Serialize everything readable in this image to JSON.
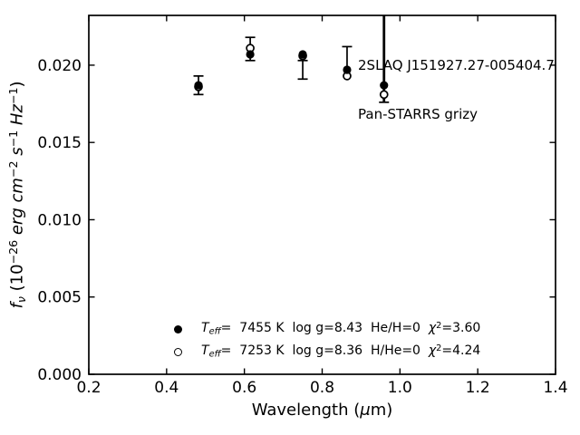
{
  "ui": {
    "annotation": {
      "line1": "2SLAQ J151927.27-005404.7",
      "line2": "Pan-STARRS grizy"
    },
    "labels": {
      "xlabel_segments": [
        {
          "t": "Wavelength (",
          "s": ""
        },
        {
          "t": "μ",
          "s": "i"
        },
        {
          "t": "m)",
          "s": ""
        }
      ],
      "ylabel_segments": [
        {
          "t": "f",
          "s": "i"
        },
        {
          "t": "ν",
          "s": "isub"
        },
        {
          "t": " (10",
          "s": ""
        },
        {
          "t": "−26",
          "s": "sup"
        },
        {
          "t": " ",
          "s": ""
        },
        {
          "t": "erg cm",
          "s": "i"
        },
        {
          "t": "−2",
          "s": "sup"
        },
        {
          "t": " ",
          "s": ""
        },
        {
          "t": "s",
          "s": "i"
        },
        {
          "t": "−1",
          "s": "sup"
        },
        {
          "t": " ",
          "s": ""
        },
        {
          "t": "Hz",
          "s": "i"
        },
        {
          "t": "−1",
          "s": "sup"
        },
        {
          "t": ")",
          "s": ""
        }
      ]
    },
    "legend": {
      "rows": [
        {
          "marker": "filled-circle",
          "segments": [
            {
              "t": "T",
              "s": "i"
            },
            {
              "t": "eff",
              "s": "isub"
            },
            {
              "t": "=  7455 K  log g=8.43  He/H=0  ",
              "s": ""
            },
            {
              "t": "χ",
              "s": "i"
            },
            {
              "t": "2",
              "s": "sup"
            },
            {
              "t": "=3.60",
              "s": ""
            }
          ]
        },
        {
          "marker": "open-circle",
          "segments": [
            {
              "t": "T",
              "s": "i"
            },
            {
              "t": "eff",
              "s": "isub"
            },
            {
              "t": "=  7253 K  log g=8.36  H/He=0  ",
              "s": ""
            },
            {
              "t": "χ",
              "s": "i"
            },
            {
              "t": "2",
              "s": "sup"
            },
            {
              "t": "=4.24",
              "s": ""
            }
          ]
        }
      ]
    }
  },
  "chart_data": {
    "type": "scatter",
    "title": "",
    "xlabel": "Wavelength (μm)",
    "ylabel": "fν (10−26 erg cm−2 s−1 Hz−1)",
    "annotation": [
      "2SLAQ J151927.27-005404.7",
      "Pan-STARRS grizy"
    ],
    "xlim": [
      0.2,
      1.4
    ],
    "ylim": [
      0.0,
      0.02322
    ],
    "xticks": [
      0.2,
      0.4,
      0.6,
      0.8,
      1.0,
      1.2,
      1.4
    ],
    "xtick_labels": [
      "0.2",
      "0.4",
      "0.6",
      "0.8",
      "1.0",
      "1.2",
      "1.4"
    ],
    "yticks": [
      0.0,
      0.005,
      0.01,
      0.015,
      0.02
    ],
    "ytick_labels": [
      "0.000",
      "0.005",
      "0.010",
      "0.015",
      "0.020"
    ],
    "grid": false,
    "legend_position": "lower center",
    "bands": [
      "g",
      "r",
      "i",
      "z",
      "y"
    ],
    "series": [
      {
        "name": "Teff= 7455 K  log g=8.43  He/H=0  χ²=3.60",
        "marker": "filled-circle",
        "x": [
          0.482,
          0.615,
          0.75,
          0.864,
          0.959
        ],
        "y": [
          0.0187,
          0.0207,
          0.0207,
          0.0197,
          0.0187
        ]
      },
      {
        "name": "Teff= 7253 K  log g=8.36  H/He=0  χ²=4.24",
        "marker": "open-circle",
        "x": [
          0.482,
          0.615,
          0.75,
          0.864,
          0.959
        ],
        "y": [
          0.0186,
          0.0211,
          0.0206,
          0.0193,
          0.0181
        ]
      }
    ],
    "error_bars": [
      {
        "x": 0.482,
        "lo": 0.0181,
        "hi": 0.0193,
        "cap_lo": true,
        "cap_hi": true,
        "lw": 1.7
      },
      {
        "x": 0.615,
        "lo": 0.0203,
        "hi": 0.0218,
        "cap_lo": true,
        "cap_hi": true,
        "lw": 1.7
      },
      {
        "x": 0.75,
        "lo": 0.0191,
        "hi": 0.0203,
        "cap_lo": true,
        "cap_hi": true,
        "lw": 1.7
      },
      {
        "x": 0.864,
        "lo": 0.0194,
        "hi": 0.0212,
        "cap_lo": false,
        "cap_hi": true,
        "lw": 1.7
      },
      {
        "x": 0.959,
        "lo": 0.0176,
        "hi": 0.02322,
        "cap_lo": true,
        "cap_hi": false,
        "lw": 2.8
      }
    ],
    "colors": {
      "foreground": "#000000",
      "background": "#ffffff"
    }
  }
}
